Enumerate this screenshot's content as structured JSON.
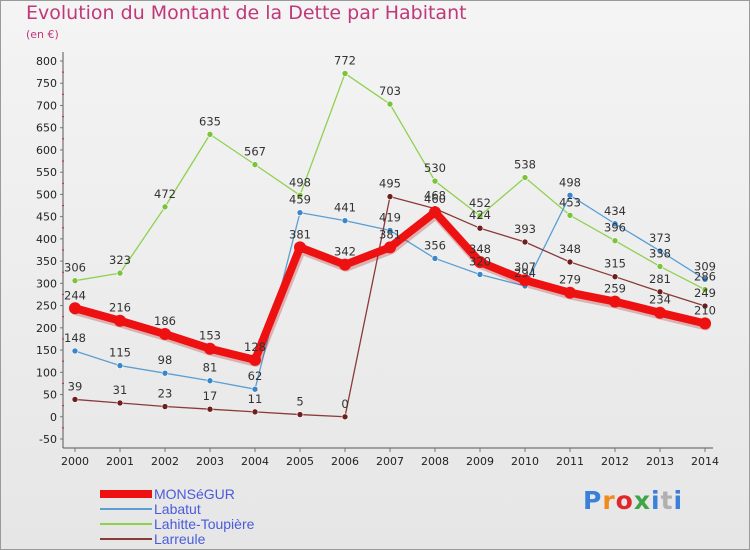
{
  "title": "Evolution du Montant de la Dette par Habitant",
  "unit_label": "(en €)",
  "logo": {
    "text": "Proxiti",
    "colors": [
      "#3a7fd8",
      "#f08a1c",
      "#e2262a",
      "#3fa547",
      "#3a7fd8",
      "#b0b0b0",
      "#3a7fd8"
    ]
  },
  "chart_data": {
    "type": "line",
    "title": "Evolution du Montant de la Dette par Habitant",
    "ylabel": "(en €)",
    "x": [
      "2000",
      "2001",
      "2002",
      "2003",
      "2004",
      "2005",
      "2006",
      "2007",
      "2008",
      "2009",
      "2010",
      "2011",
      "2012",
      "2013",
      "2014"
    ],
    "ylim": [
      -50,
      800
    ],
    "yticks": [
      -50,
      0,
      50,
      100,
      150,
      200,
      250,
      300,
      350,
      400,
      450,
      500,
      550,
      600,
      650,
      700,
      750,
      800
    ],
    "grid": false,
    "legend_position": "bottom-left",
    "series": [
      {
        "name": "Lahitte-Toupière",
        "color": "#8fd14f",
        "marker": "#7cc23a",
        "values": [
          306,
          323,
          472,
          635,
          567,
          498,
          772,
          703,
          530,
          452,
          538,
          453,
          396,
          338,
          286
        ],
        "labels": [
          "306",
          "323",
          "472",
          "635",
          "567",
          "498",
          "772",
          "703",
          "530",
          "452",
          "538",
          "453",
          "396",
          "338",
          "286"
        ]
      },
      {
        "name": "Labatut",
        "color": "#5a9fd4",
        "marker": "#3a86c8",
        "values": [
          148,
          115,
          98,
          81,
          62,
          459,
          441,
          419,
          356,
          320,
          294,
          498,
          434,
          373,
          309
        ],
        "labels": [
          "148",
          "115",
          "98",
          "81",
          "62",
          "459",
          "441",
          "419",
          "356",
          "320",
          "294",
          "498",
          "434",
          "373",
          "309"
        ]
      },
      {
        "name": "Larreule",
        "color": "#8b3a3a",
        "marker": "#6e1e1e",
        "values": [
          39,
          31,
          23,
          17,
          11,
          5,
          0,
          495,
          468,
          424,
          393,
          348,
          315,
          281,
          249
        ],
        "labels": [
          "39",
          "31",
          "23",
          "17",
          "11",
          "5",
          "0",
          "495",
          "468",
          "424",
          "393",
          "348",
          "315",
          "281",
          "249"
        ]
      },
      {
        "name": "MONSéGUR",
        "color": "#ee1111",
        "marker": "#ee1111",
        "values": [
          244,
          216,
          186,
          153,
          128,
          381,
          342,
          381,
          460,
          348,
          307,
          279,
          259,
          234,
          210
        ],
        "labels": [
          "244",
          "216",
          "186",
          "153",
          "128",
          "381",
          "342",
          "381",
          "460",
          "348",
          "307",
          "279",
          "259",
          "234",
          "210"
        ]
      }
    ],
    "legend": [
      "MONSéGUR",
      "Labatut",
      "Lahitte-Toupière",
      "Larreule"
    ]
  }
}
